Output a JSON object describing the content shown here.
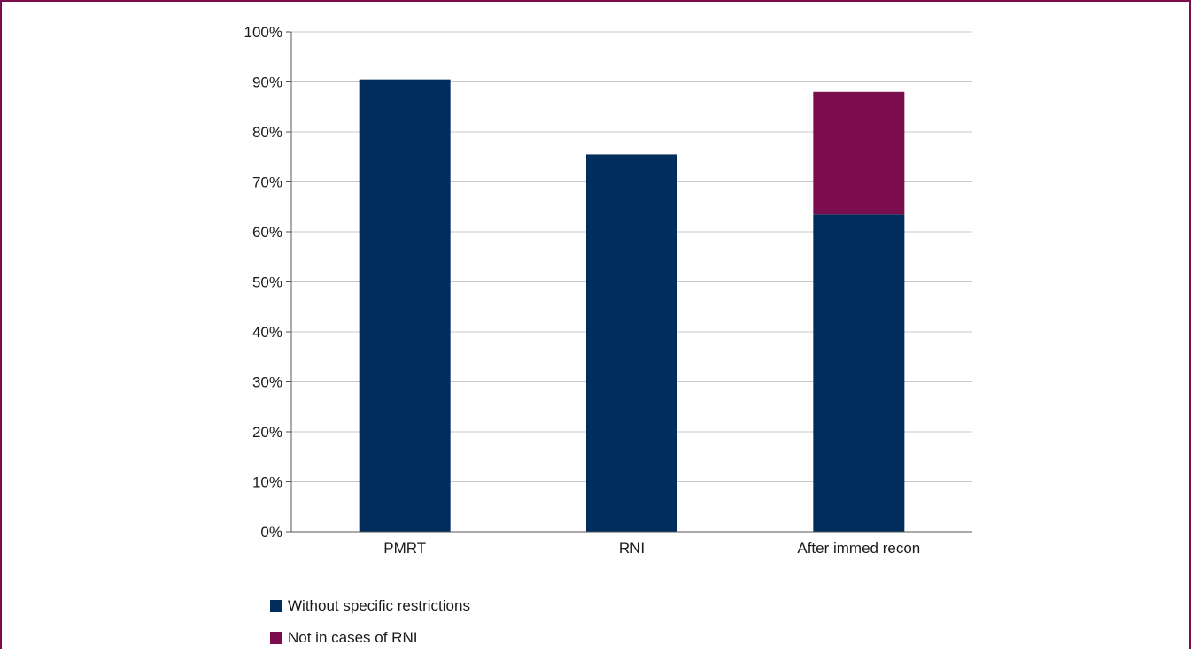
{
  "chart_data": {
    "type": "bar",
    "stacked": true,
    "categories": [
      "PMRT",
      "RNI",
      "After immed recon"
    ],
    "series": [
      {
        "name": "Without specific restrictions",
        "color": "#002d5b",
        "values": [
          90.5,
          75.5,
          63.5
        ]
      },
      {
        "name": "Not in cases of RNI",
        "color": "#7b0d4f",
        "values": [
          0,
          0,
          24.5
        ]
      }
    ],
    "ylim": [
      0,
      100
    ],
    "yticks": [
      0,
      10,
      20,
      30,
      40,
      50,
      60,
      70,
      80,
      90,
      100
    ],
    "ytick_labels": [
      "0%",
      "10%",
      "20%",
      "30%",
      "40%",
      "50%",
      "60%",
      "70%",
      "80%",
      "90%",
      "100%"
    ],
    "grid": true,
    "legend_position": "bottom-left"
  }
}
